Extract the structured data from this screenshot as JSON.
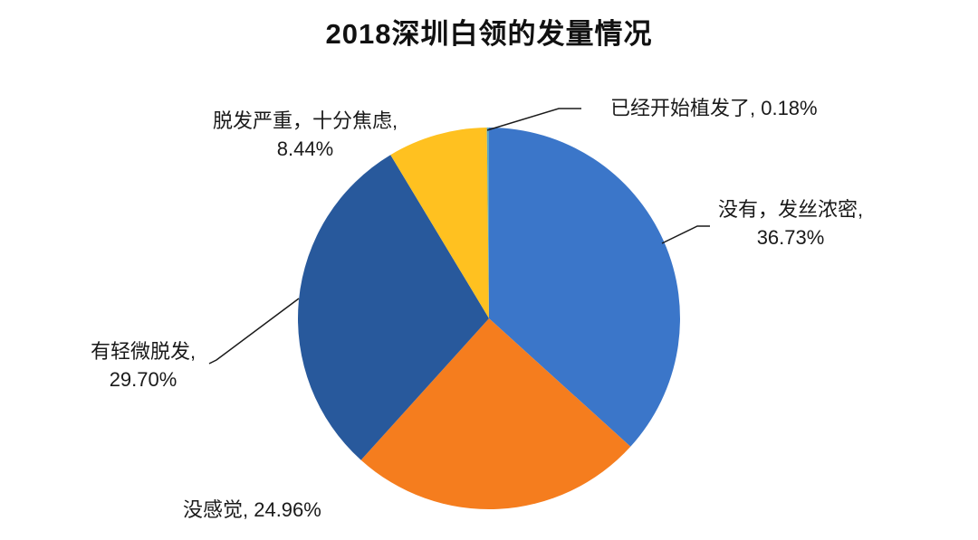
{
  "chart_data": {
    "type": "pie",
    "title": "2018深圳白领的发量情况",
    "start_angle_deg": 0,
    "direction": "clockwise",
    "legend": "none",
    "background_color": "#ffffff",
    "text_color": "#1a1a1a",
    "slices": [
      {
        "label": "没有，发丝浓密",
        "value": 36.73,
        "color": "#3b76c9"
      },
      {
        "label": "没感觉",
        "value": 24.96,
        "color": "#f57d1e"
      },
      {
        "label": "有轻微脱发",
        "value": 29.7,
        "color": "#28599c"
      },
      {
        "label": "脱发严重，十分焦虑",
        "value": 8.44,
        "color": "#ffc120"
      },
      {
        "label": "已经开始植发了",
        "value": 0.18,
        "color": "#5ba7c4"
      }
    ],
    "callouts": {
      "transplant": {
        "line1": "已经开始植发了, 0.18%"
      },
      "dense": {
        "line1": "没有，发丝浓密,",
        "line2": "36.73%"
      },
      "severe": {
        "line1": "脱发严重，十分焦虑,",
        "line2": "8.44%"
      },
      "slight": {
        "line1": "有轻微脱发,",
        "line2": "29.70%"
      },
      "no_feeling": {
        "line1": "没感觉, 24.96%"
      }
    }
  }
}
